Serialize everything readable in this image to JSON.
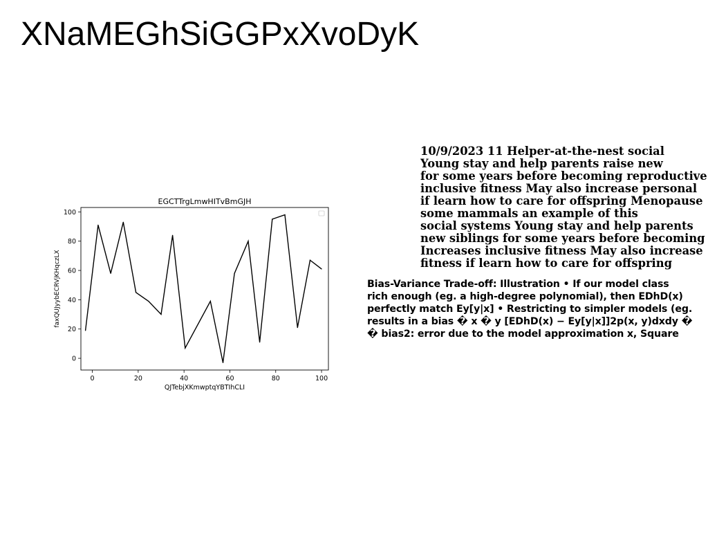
{
  "page": {
    "title": "XNaMEGhSiGGPxXvoDyK"
  },
  "text_block_1": {
    "lines": [
      "10/9/2023 11 Helper-at-the-nest social",
      "Young stay and help parents raise new",
      "for some years before becoming reproductive",
      "inclusive fitness May also increase personal",
      "if learn how to care for offspring Menopause",
      "some mammals an example of this",
      "social systems Young stay and help parents",
      "new siblings for some years before becoming",
      "Increases inclusive fitness May also increase",
      "fitness if learn how to care for offspring"
    ]
  },
  "text_block_2": {
    "lines": [
      "Bias-Variance Trade-off: Illustration • If our model class",
      "rich enough (eg. a high-degree polynomial), then EDhD(x)",
      "perfectly match Ey[y|x] • Restricting to simpler models (eg.",
      "results in a bias � x � y [EDhD(x) − Ey[y|x]]2p(x, y)dxdy �",
      "� bias2: error due to the model approximation x, Square"
    ]
  },
  "chart_data": {
    "type": "line",
    "title": "EGCTTrgLmwHITvBmGJH",
    "xlabel": "QJTebjXKmwptqYBTIhCLI",
    "ylabel": "faxQUJyybECRVjKHqczLX",
    "xlim": [
      -5,
      103
    ],
    "ylim": [
      -8,
      103
    ],
    "xticks": [
      0,
      20,
      40,
      60,
      80,
      100
    ],
    "yticks": [
      0,
      20,
      40,
      60,
      80,
      100
    ],
    "grid": false,
    "legend": "top-right, empty",
    "line_color": "#000000",
    "x": [
      -3,
      2.5,
      8,
      13.5,
      19,
      24.5,
      30,
      35,
      40.5,
      51.5,
      57,
      62,
      68,
      73,
      78.5,
      84,
      89.5,
      95,
      100
    ],
    "y": [
      19,
      91,
      58,
      93,
      45,
      39,
      30,
      84,
      7,
      39,
      -3,
      58,
      80,
      11,
      95,
      98,
      21,
      67,
      61
    ]
  }
}
